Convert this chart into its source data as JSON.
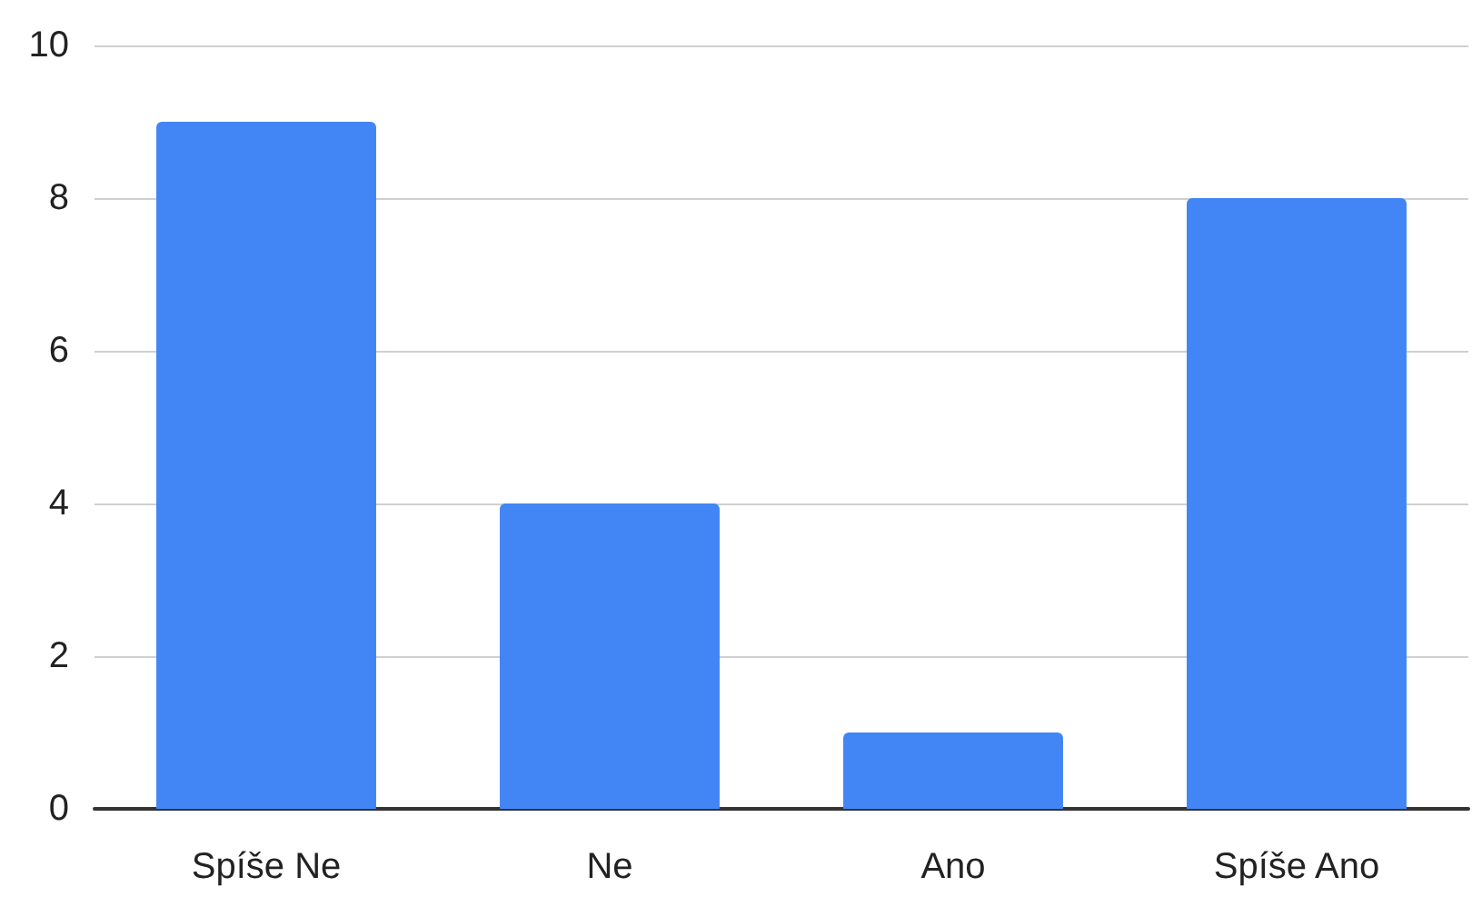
{
  "chart_data": {
    "type": "bar",
    "categories": [
      "Spíše Ne",
      "Ne",
      "Ano",
      "Spíše Ano"
    ],
    "values": [
      9,
      4,
      1,
      8
    ],
    "color": "#4285f4",
    "ylim": [
      0,
      10
    ],
    "yticks": [
      0,
      2,
      4,
      6,
      8,
      10
    ],
    "grid": "y"
  }
}
